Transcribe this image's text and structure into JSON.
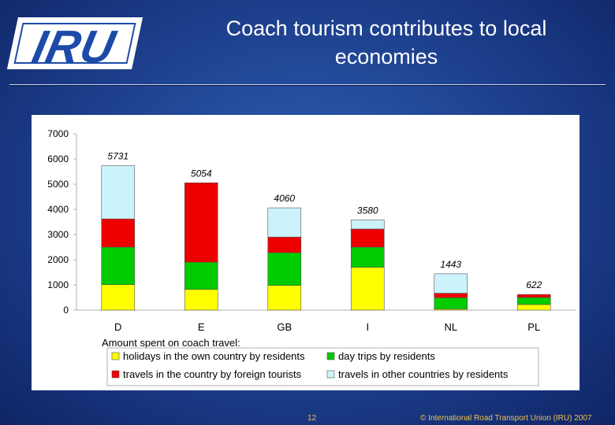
{
  "header": {
    "logo_text": "IRU",
    "title_line1": "Coach tourism contributes to local",
    "title_line2": "economies"
  },
  "footer": {
    "page_number": "12",
    "copyright": "© International Road Transport Union (IRU) 2007"
  },
  "chart_data": {
    "type": "bar",
    "stacked": true,
    "categories": [
      "D",
      "E",
      "GB",
      "I",
      "NL",
      "PL"
    ],
    "totals": [
      "5731",
      "5054",
      "4060",
      "3580",
      "1443",
      "622"
    ],
    "series": [
      {
        "name": "holidays in the own country by residents",
        "color": "#ffff00",
        "values": [
          1010,
          820,
          980,
          1700,
          40,
          220
        ]
      },
      {
        "name": "day trips by residents",
        "color": "#00cc00",
        "values": [
          1490,
          1080,
          1300,
          800,
          450,
          280
        ]
      },
      {
        "name": "travels in the country by foreign tourists",
        "color": "#ee0000",
        "values": [
          1120,
          3154,
          620,
          720,
          180,
          122
        ]
      },
      {
        "name": "travels in other countries by residents",
        "color": "#ccf2fb",
        "values": [
          2111,
          0,
          1160,
          360,
          773,
          0
        ]
      }
    ],
    "ylim": [
      0,
      7000
    ],
    "yticks": [
      "0",
      "1000",
      "2000",
      "3000",
      "4000",
      "5000",
      "6000",
      "7000"
    ],
    "legend_title": "Amount spent on coach travel:",
    "legend_position": "bottom",
    "grid": false
  }
}
